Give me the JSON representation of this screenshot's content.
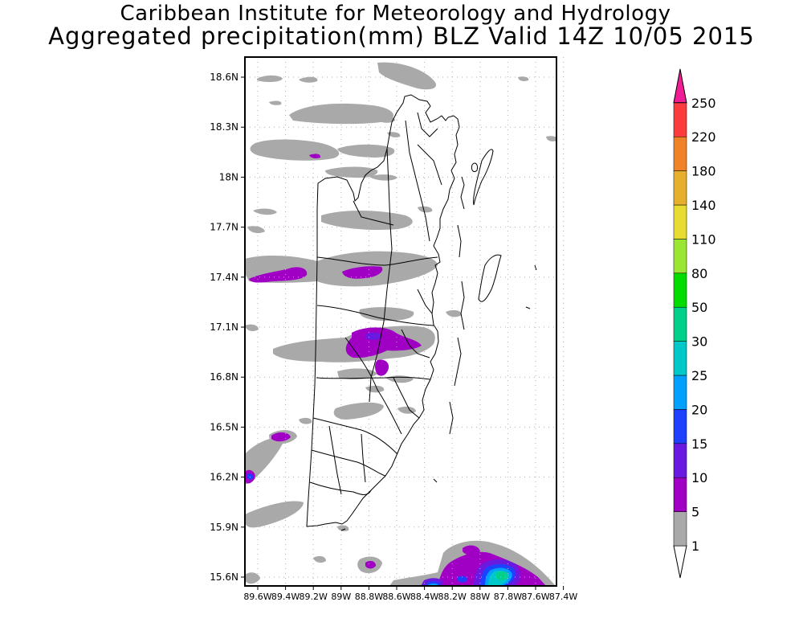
{
  "titles": {
    "line1": "Caribbean Institute for Meteorology and Hydrology",
    "line2": "Aggregated precipitation(mm) BLZ Valid 14Z 10/05 2015"
  },
  "map": {
    "lat_ticks": [
      "18.6N",
      "18.3N",
      "18N",
      "17.7N",
      "17.4N",
      "17.1N",
      "16.8N",
      "16.5N",
      "16.2N",
      "15.9N",
      "15.6N"
    ],
    "lon_ticks": [
      "89.6W",
      "89.4W",
      "89.2W",
      "89W",
      "88.8W",
      "88.6W",
      "88.4W",
      "88.2W",
      "88W",
      "87.8W",
      "87.6W",
      "87.4W"
    ],
    "grid": true,
    "gridline_style": "dotted"
  },
  "colorbar": {
    "levels": [
      "1",
      "5",
      "10",
      "15",
      "20",
      "25",
      "30",
      "50",
      "80",
      "110",
      "140",
      "180",
      "220",
      "250"
    ],
    "colors": [
      "#ffffff",
      "#a9a9a9",
      "#9f00c4",
      "#6a1ae0",
      "#1e40ff",
      "#00a0ff",
      "#00c8c8",
      "#00d08a",
      "#00dc00",
      "#9ae632",
      "#e6dc32",
      "#e6af2d",
      "#f08228",
      "#fa3c3c",
      "#f01e96"
    ]
  }
}
